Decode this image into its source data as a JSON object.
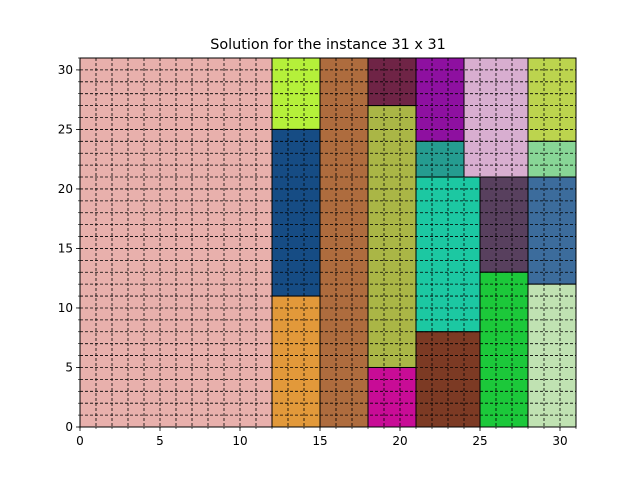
{
  "chart_data": {
    "type": "heatmap",
    "title": "Solution for the instance 31 x 31",
    "xlabel": "",
    "ylabel": "",
    "xlim": [
      0,
      31
    ],
    "ylim": [
      0,
      31
    ],
    "x_ticks": [
      0,
      5,
      10,
      15,
      20,
      25,
      30
    ],
    "y_ticks": [
      0,
      5,
      10,
      15,
      20,
      25,
      30
    ],
    "x_tick_labels": [
      "0",
      "5",
      "10",
      "15",
      "20",
      "25",
      "30"
    ],
    "y_tick_labels": [
      "0",
      "5",
      "10",
      "15",
      "20",
      "25",
      "30"
    ],
    "grid": "dashed grid at every integer",
    "rectangles": [
      {
        "x": 0,
        "y": 0,
        "w": 12,
        "h": 31,
        "color": "#e8b0ac"
      },
      {
        "x": 12,
        "y": 25,
        "w": 3,
        "h": 6,
        "color": "#b5f03a"
      },
      {
        "x": 12,
        "y": 11,
        "w": 3,
        "h": 14,
        "color": "#164c84"
      },
      {
        "x": 12,
        "y": 0,
        "w": 3,
        "h": 11,
        "color": "#e2993a"
      },
      {
        "x": 15,
        "y": 0,
        "w": 3,
        "h": 31,
        "color": "#ae6c3e"
      },
      {
        "x": 18,
        "y": 27,
        "w": 3,
        "h": 4,
        "color": "#6f2446"
      },
      {
        "x": 18,
        "y": 5,
        "w": 3,
        "h": 22,
        "color": "#aab646"
      },
      {
        "x": 18,
        "y": 0,
        "w": 3,
        "h": 5,
        "color": "#c80c96"
      },
      {
        "x": 21,
        "y": 24,
        "w": 3,
        "h": 7,
        "color": "#8e10a0"
      },
      {
        "x": 21,
        "y": 21,
        "w": 3,
        "h": 3,
        "color": "#259c90"
      },
      {
        "x": 21,
        "y": 8,
        "w": 4,
        "h": 13,
        "color": "#1cc8a2"
      },
      {
        "x": 21,
        "y": 0,
        "w": 4,
        "h": 8,
        "color": "#7c3a24"
      },
      {
        "x": 24,
        "y": 21,
        "w": 4,
        "h": 10,
        "color": "#d8aed0"
      },
      {
        "x": 25,
        "y": 13,
        "w": 3,
        "h": 8,
        "color": "#58405e"
      },
      {
        "x": 25,
        "y": 0,
        "w": 3,
        "h": 13,
        "color": "#1cc83a"
      },
      {
        "x": 28,
        "y": 24,
        "w": 3,
        "h": 7,
        "color": "#bcd44e"
      },
      {
        "x": 28,
        "y": 21,
        "w": 3,
        "h": 3,
        "color": "#88d696"
      },
      {
        "x": 28,
        "y": 12,
        "w": 3,
        "h": 9,
        "color": "#3c6c9c"
      },
      {
        "x": 28,
        "y": 0,
        "w": 3,
        "h": 12,
        "color": "#c0e2b2"
      }
    ]
  }
}
